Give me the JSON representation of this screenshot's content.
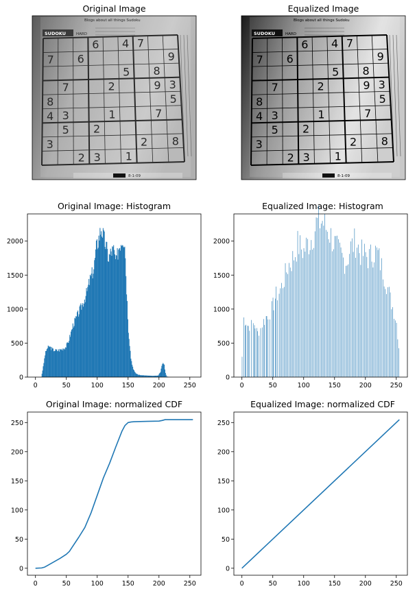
{
  "figure": {
    "panels": [
      {
        "id": "orig-img",
        "title": "Original Image",
        "kind": "image",
        "variant": "original"
      },
      {
        "id": "eq-img",
        "title": "Equalized Image",
        "kind": "image",
        "variant": "equalized"
      },
      {
        "id": "orig-hist",
        "title": "Original Image: Histogram",
        "kind": "chart"
      },
      {
        "id": "eq-hist",
        "title": "Equalized Image: Histogram",
        "kind": "chart"
      },
      {
        "id": "orig-cdf",
        "title": "Original Image: normalized CDF",
        "kind": "chart"
      },
      {
        "id": "eq-cdf",
        "title": "Equalized Image: normalized CDF",
        "kind": "chart"
      }
    ]
  },
  "sudoku": {
    "header_label": "SUDOKU",
    "level_label": "HARD",
    "headline": "Blogs about all things Sudoku",
    "footer_date": "8-1-09",
    "digits": [
      {
        "r": 0,
        "c": 3,
        "v": "6"
      },
      {
        "r": 0,
        "c": 5,
        "v": "4"
      },
      {
        "r": 0,
        "c": 6,
        "v": "7"
      },
      {
        "r": 1,
        "c": 0,
        "v": "7"
      },
      {
        "r": 1,
        "c": 2,
        "v": "6"
      },
      {
        "r": 1,
        "c": 8,
        "v": "9"
      },
      {
        "r": 2,
        "c": 5,
        "v": "5"
      },
      {
        "r": 2,
        "c": 7,
        "v": "8"
      },
      {
        "r": 3,
        "c": 1,
        "v": "7"
      },
      {
        "r": 3,
        "c": 4,
        "v": "2"
      },
      {
        "r": 3,
        "c": 7,
        "v": "9"
      },
      {
        "r": 3,
        "c": 8,
        "v": "3"
      },
      {
        "r": 4,
        "c": 0,
        "v": "8"
      },
      {
        "r": 4,
        "c": 8,
        "v": "5"
      },
      {
        "r": 5,
        "c": 0,
        "v": "4"
      },
      {
        "r": 5,
        "c": 1,
        "v": "3"
      },
      {
        "r": 5,
        "c": 4,
        "v": "1"
      },
      {
        "r": 5,
        "c": 7,
        "v": "7"
      },
      {
        "r": 6,
        "c": 1,
        "v": "5"
      },
      {
        "r": 6,
        "c": 3,
        "v": "2"
      },
      {
        "r": 7,
        "c": 0,
        "v": "3"
      },
      {
        "r": 7,
        "c": 6,
        "v": "2"
      },
      {
        "r": 7,
        "c": 8,
        "v": "8"
      },
      {
        "r": 8,
        "c": 2,
        "v": "2"
      },
      {
        "r": 8,
        "c": 3,
        "v": "3"
      },
      {
        "r": 8,
        "c": 5,
        "v": "1"
      }
    ]
  },
  "chart_data": [
    {
      "id": "orig-hist",
      "type": "bar",
      "title": "Original Image: Histogram",
      "xlim": [
        -13,
        268
      ],
      "ylim": [
        0,
        2400
      ],
      "xticks": [
        0,
        50,
        100,
        150,
        200,
        250
      ],
      "yticks": [
        0,
        500,
        1000,
        1500,
        2000
      ],
      "color": "#1f77b4",
      "profile": [
        [
          9,
          0
        ],
        [
          12,
          150
        ],
        [
          15,
          330
        ],
        [
          18,
          420
        ],
        [
          22,
          450
        ],
        [
          28,
          400
        ],
        [
          35,
          390
        ],
        [
          42,
          410
        ],
        [
          48,
          440
        ],
        [
          52,
          500
        ],
        [
          56,
          620
        ],
        [
          60,
          760
        ],
        [
          64,
          840
        ],
        [
          70,
          960
        ],
        [
          76,
          1080
        ],
        [
          82,
          1230
        ],
        [
          88,
          1440
        ],
        [
          94,
          1600
        ],
        [
          98,
          1900
        ],
        [
          102,
          2050
        ],
        [
          106,
          2200
        ],
        [
          110,
          2050
        ],
        [
          114,
          1920
        ],
        [
          118,
          1750
        ],
        [
          122,
          1850
        ],
        [
          126,
          1870
        ],
        [
          130,
          1680
        ],
        [
          134,
          1900
        ],
        [
          138,
          2000
        ],
        [
          141,
          2050
        ],
        [
          144,
          2000
        ],
        [
          147,
          1300
        ],
        [
          150,
          700
        ],
        [
          154,
          280
        ],
        [
          158,
          110
        ],
        [
          162,
          55
        ],
        [
          166,
          35
        ],
        [
          170,
          28
        ],
        [
          180,
          22
        ],
        [
          190,
          18
        ],
        [
          198,
          22
        ],
        [
          202,
          80
        ],
        [
          204,
          160
        ],
        [
          206,
          210
        ],
        [
          208,
          180
        ],
        [
          210,
          60
        ],
        [
          212,
          10
        ],
        [
          216,
          0
        ],
        [
          255,
          0
        ]
      ]
    },
    {
      "id": "eq-hist",
      "type": "bar",
      "title": "Equalized Image: Histogram",
      "xlim": [
        -13,
        268
      ],
      "ylim": [
        0,
        2400
      ],
      "xticks": [
        0,
        50,
        100,
        150,
        200,
        250
      ],
      "yticks": [
        0,
        500,
        1000,
        1500,
        2000
      ],
      "color": "#1f77b4",
      "profile": [
        [
          0,
          300
        ],
        [
          2,
          880
        ],
        [
          6,
          820
        ],
        [
          10,
          750
        ],
        [
          15,
          770
        ],
        [
          20,
          780
        ],
        [
          25,
          650
        ],
        [
          30,
          720
        ],
        [
          35,
          820
        ],
        [
          40,
          900
        ],
        [
          45,
          950
        ],
        [
          50,
          1050
        ],
        [
          55,
          1200
        ],
        [
          60,
          1250
        ],
        [
          65,
          1350
        ],
        [
          70,
          1500
        ],
        [
          75,
          1650
        ],
        [
          80,
          1700
        ],
        [
          85,
          1800
        ],
        [
          90,
          1950
        ],
        [
          95,
          1900
        ],
        [
          100,
          1850
        ],
        [
          105,
          1950
        ],
        [
          110,
          2000
        ],
        [
          115,
          2100
        ],
        [
          120,
          2250
        ],
        [
          125,
          2280
        ],
        [
          130,
          2300
        ],
        [
          135,
          2200
        ],
        [
          140,
          2150
        ],
        [
          145,
          2050
        ],
        [
          150,
          1950
        ],
        [
          155,
          1850
        ],
        [
          160,
          1800
        ],
        [
          165,
          1720
        ],
        [
          170,
          1700
        ],
        [
          175,
          1900
        ],
        [
          180,
          1950
        ],
        [
          185,
          2000
        ],
        [
          190,
          1850
        ],
        [
          195,
          1800
        ],
        [
          200,
          1800
        ],
        [
          205,
          1750
        ],
        [
          210,
          1800
        ],
        [
          215,
          1850
        ],
        [
          220,
          1800
        ],
        [
          225,
          1650
        ],
        [
          230,
          1500
        ],
        [
          235,
          1350
        ],
        [
          240,
          1150
        ],
        [
          245,
          1000
        ],
        [
          250,
          800
        ],
        [
          255,
          350
        ]
      ]
    },
    {
      "id": "orig-cdf",
      "type": "line",
      "title": "Original Image: normalized CDF",
      "xlim": [
        -13,
        268
      ],
      "ylim": [
        -12,
        268
      ],
      "xticks": [
        0,
        50,
        100,
        150,
        200,
        250
      ],
      "yticks": [
        0,
        50,
        100,
        150,
        200,
        250
      ],
      "color": "#1f77b4",
      "x": [
        0,
        10,
        15,
        20,
        30,
        40,
        50,
        55,
        60,
        70,
        80,
        90,
        100,
        110,
        120,
        130,
        140,
        145,
        150,
        155,
        160,
        180,
        200,
        205,
        210,
        230,
        255
      ],
      "y": [
        0,
        0.5,
        2,
        5,
        11,
        17,
        24,
        29,
        37,
        53,
        70,
        95,
        125,
        155,
        180,
        208,
        235,
        245,
        250,
        251,
        251.5,
        252,
        252.5,
        253.5,
        255,
        255,
        255
      ]
    },
    {
      "id": "eq-cdf",
      "type": "line",
      "title": "Equalized Image: normalized CDF",
      "xlim": [
        -13,
        268
      ],
      "ylim": [
        -12,
        268
      ],
      "xticks": [
        0,
        50,
        100,
        150,
        200,
        250
      ],
      "yticks": [
        0,
        50,
        100,
        150,
        200,
        250
      ],
      "color": "#1f77b4",
      "x": [
        0,
        255
      ],
      "y": [
        0,
        255
      ]
    }
  ]
}
